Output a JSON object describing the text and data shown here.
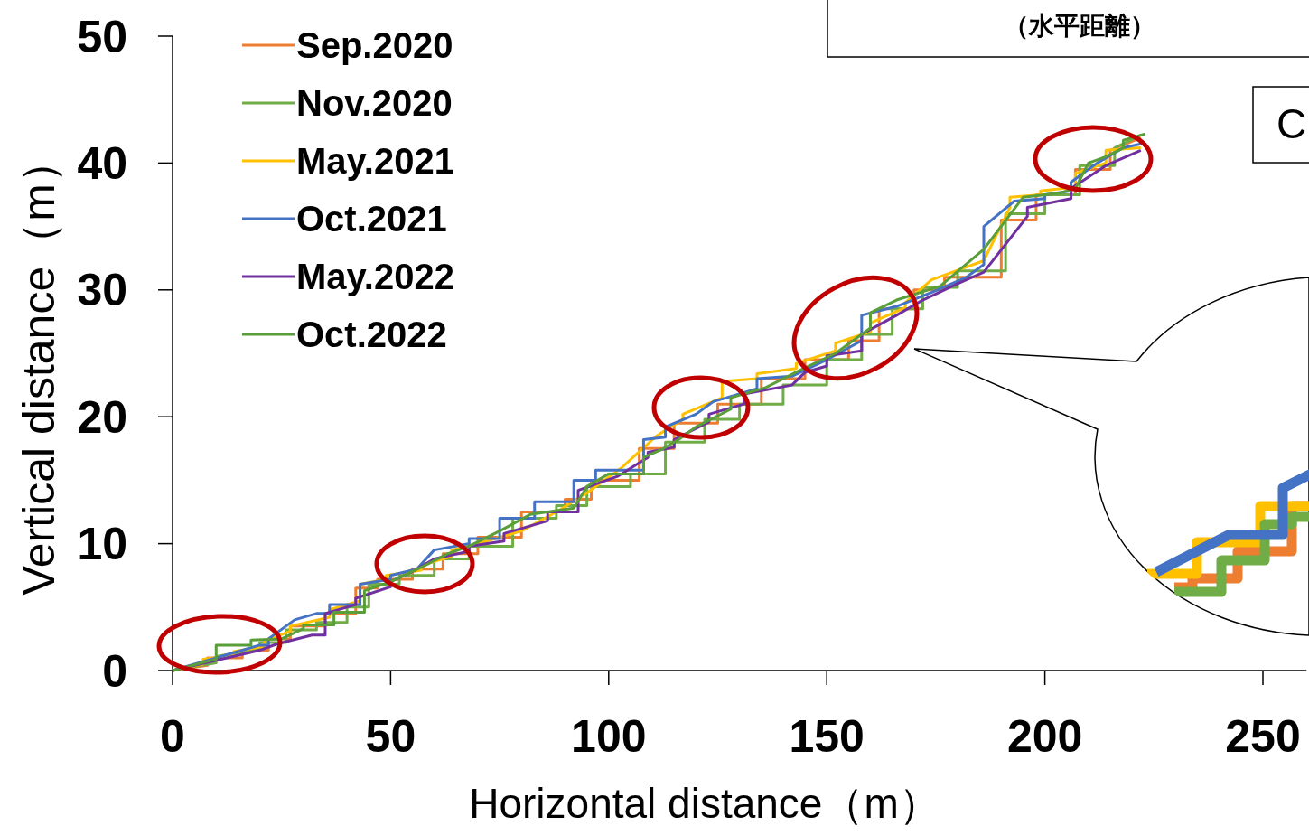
{
  "chart_data": {
    "type": "step",
    "xlabel": "Horizontal distance（m）",
    "ylabel": "Vertical distance（m）",
    "xlim": [
      0,
      260
    ],
    "xticks": [
      0,
      50,
      100,
      150,
      200,
      250
    ],
    "ylim": [
      0,
      50
    ],
    "yticks": [
      0,
      10,
      20,
      30,
      40,
      50
    ],
    "legend": "top left",
    "grid": false,
    "marker": "none",
    "line_style": "solid",
    "annotations": [
      "（水平距離）",
      "C"
    ],
    "series": [
      {
        "name": "Sep.2020",
        "color": "#ed7d31",
        "x": [
          0,
          8,
          8,
          16,
          16,
          22,
          22,
          27,
          27,
          35,
          35,
          42,
          42,
          47,
          47,
          55,
          55,
          62,
          62,
          70,
          70,
          80,
          80,
          90,
          90,
          96,
          96,
          107,
          107,
          115,
          115,
          125,
          125,
          135,
          135,
          145,
          145,
          155,
          155,
          162,
          162,
          170,
          170,
          177,
          177,
          190,
          190,
          198,
          198,
          207,
          207,
          215,
          215,
          222
        ],
        "values": [
          0,
          0.4,
          1,
          1,
          1.6,
          1.6,
          2.5,
          2.5,
          3.5,
          3.5,
          4.5,
          4.5,
          6.5,
          6.5,
          7.2,
          7.2,
          8,
          8,
          9.2,
          9.2,
          10.5,
          10.5,
          12.5,
          12.5,
          13.5,
          13.5,
          15,
          15,
          17.5,
          17.5,
          19.5,
          19.5,
          21,
          21,
          23,
          23,
          24.5,
          24.5,
          26,
          26,
          28.5,
          28.5,
          30,
          30,
          31,
          31,
          35.5,
          35.5,
          37.5,
          37.5,
          39.5,
          39.5,
          41,
          42
        ]
      },
      {
        "name": "Nov.2020",
        "color": "#70ad47",
        "x": [
          0,
          10,
          10,
          20,
          20,
          26,
          26,
          33,
          33,
          40,
          40,
          45,
          45,
          52,
          52,
          60,
          60,
          68,
          68,
          78,
          78,
          88,
          88,
          95,
          95,
          105,
          105,
          113,
          113,
          122,
          122,
          130,
          130,
          140,
          140,
          150,
          150,
          158,
          158,
          165,
          165,
          172,
          172,
          180,
          180,
          191,
          191,
          200,
          200,
          208,
          208,
          216,
          216,
          222
        ],
        "values": [
          0,
          0.6,
          1.1,
          1.7,
          2.2,
          2.2,
          3.2,
          3.2,
          3.8,
          3.8,
          5,
          5,
          6.8,
          6.8,
          7.5,
          7.5,
          8.8,
          8.8,
          9.8,
          9.8,
          12,
          12,
          13,
          13,
          14.5,
          14.5,
          15.5,
          15.5,
          18,
          18,
          19.8,
          19.8,
          21,
          21,
          22.5,
          22.5,
          24.5,
          24.5,
          26.5,
          26.5,
          28.5,
          28.5,
          30.2,
          30.2,
          31.5,
          31.5,
          36,
          36,
          37.5,
          37.5,
          39.8,
          39.8,
          41.2,
          42.2
        ]
      },
      {
        "name": "May.2021",
        "color": "#ffc000",
        "x": [
          0,
          7,
          7,
          14,
          14,
          21,
          21,
          27,
          27,
          36,
          36,
          43,
          43,
          49,
          49,
          57,
          57,
          64,
          64,
          72,
          72,
          80,
          80,
          88,
          88,
          95,
          95,
          103,
          103,
          111,
          111,
          117,
          117,
          126,
          126,
          134,
          134,
          143,
          143,
          152,
          152,
          160,
          160,
          168,
          168,
          174,
          174,
          186,
          186,
          192,
          192,
          199,
          199,
          207,
          207,
          214,
          214,
          222
        ],
        "values": [
          0,
          0.5,
          0.9,
          1.2,
          1.5,
          1.9,
          2.3,
          3.1,
          3.5,
          4.2,
          4.8,
          5.5,
          6.8,
          7.2,
          7.5,
          7.9,
          8.3,
          9,
          9.5,
          10.2,
          10.2,
          11,
          11,
          12.5,
          12.5,
          14,
          14,
          16,
          16,
          18.5,
          18.5,
          19.8,
          20.2,
          21.5,
          22.8,
          23,
          23.4,
          23.8,
          24.2,
          25.2,
          25.8,
          26.7,
          27.4,
          28.6,
          29,
          30.8,
          30.8,
          32.3,
          32.3,
          36.5,
          37.3,
          37.5,
          37.8,
          38.1,
          39.2,
          40,
          41,
          41.2
        ]
      },
      {
        "name": "Oct.2021",
        "color": "#4472c4",
        "x": [
          0,
          10,
          20,
          22,
          22,
          28,
          33,
          36,
          36,
          43,
          43,
          50,
          50,
          56,
          60,
          68,
          68,
          75,
          75,
          83,
          83,
          92,
          92,
          97,
          97,
          108,
          108,
          113,
          113,
          120,
          124,
          134,
          134,
          142,
          150,
          158,
          158,
          166,
          174,
          182,
          186,
          186,
          193,
          200,
          200,
          206,
          206,
          212,
          218,
          222
        ],
        "values": [
          0,
          1,
          2,
          2,
          2.5,
          4,
          4.5,
          4.5,
          5.2,
          5.2,
          6.8,
          7.2,
          7.5,
          8,
          9.5,
          10,
          10.4,
          10.4,
          12,
          12,
          13.3,
          13.3,
          15,
          15,
          15.8,
          15.8,
          18.2,
          18.4,
          19.2,
          20.2,
          21.2,
          22.2,
          23,
          23.2,
          24.5,
          26,
          28,
          28.7,
          29.8,
          31,
          32,
          35,
          37,
          37.2,
          37.5,
          37.8,
          38.5,
          40,
          41.2,
          41.5
        ]
      },
      {
        "name": "May.2022",
        "color": "#7030a0",
        "x": [
          0,
          10,
          20,
          24,
          32,
          35,
          35,
          42,
          42,
          50,
          50,
          55,
          60,
          68,
          68,
          76,
          76,
          86,
          86,
          93,
          93,
          102,
          102,
          109,
          109,
          115,
          115,
          123,
          123,
          131,
          131,
          142,
          145,
          150,
          150,
          158,
          158,
          166,
          172,
          180,
          180,
          186,
          186,
          196,
          196,
          206,
          206,
          214,
          222
        ],
        "values": [
          0,
          0.8,
          1.6,
          2.1,
          2.8,
          2.8,
          4.5,
          5.2,
          5.7,
          6.6,
          7,
          7.8,
          8.8,
          9.4,
          9.8,
          10.2,
          10.8,
          11.8,
          12.5,
          12.5,
          14.2,
          15.3,
          15.3,
          16.8,
          17.2,
          17.6,
          18.2,
          19.6,
          20.2,
          21,
          21.8,
          22.5,
          23.5,
          24,
          24.8,
          25.2,
          26.5,
          28,
          29.2,
          30.5,
          30.5,
          31.4,
          31.4,
          35.8,
          36.5,
          37.2,
          38,
          39.8,
          41
        ]
      },
      {
        "name": "Oct.2022",
        "color": "#5a9e3a",
        "x": [
          0,
          10,
          10,
          18,
          18,
          25,
          30,
          30,
          37,
          37,
          44,
          44,
          50,
          58,
          63,
          68,
          75,
          82,
          92,
          92,
          95,
          100,
          108,
          108,
          112,
          116,
          120,
          128,
          128,
          136,
          144,
          152,
          156,
          160,
          160,
          166,
          176,
          186,
          195,
          203,
          207,
          210,
          214,
          218,
          218,
          223
        ],
        "values": [
          0,
          0.9,
          2,
          2,
          2.4,
          2.5,
          3.3,
          3.6,
          3.6,
          4.6,
          4.6,
          6.3,
          7,
          8.3,
          9.2,
          9.8,
          11,
          12.3,
          12.8,
          12.8,
          14.5,
          15.5,
          15.5,
          16.8,
          17.4,
          18.2,
          19.2,
          20.6,
          21.5,
          22.3,
          23.7,
          25,
          26,
          27,
          28.2,
          29.2,
          30.3,
          33.2,
          37.3,
          37.6,
          38,
          40,
          40.5,
          41.2,
          41.8,
          42.3
        ]
      }
    ]
  }
}
